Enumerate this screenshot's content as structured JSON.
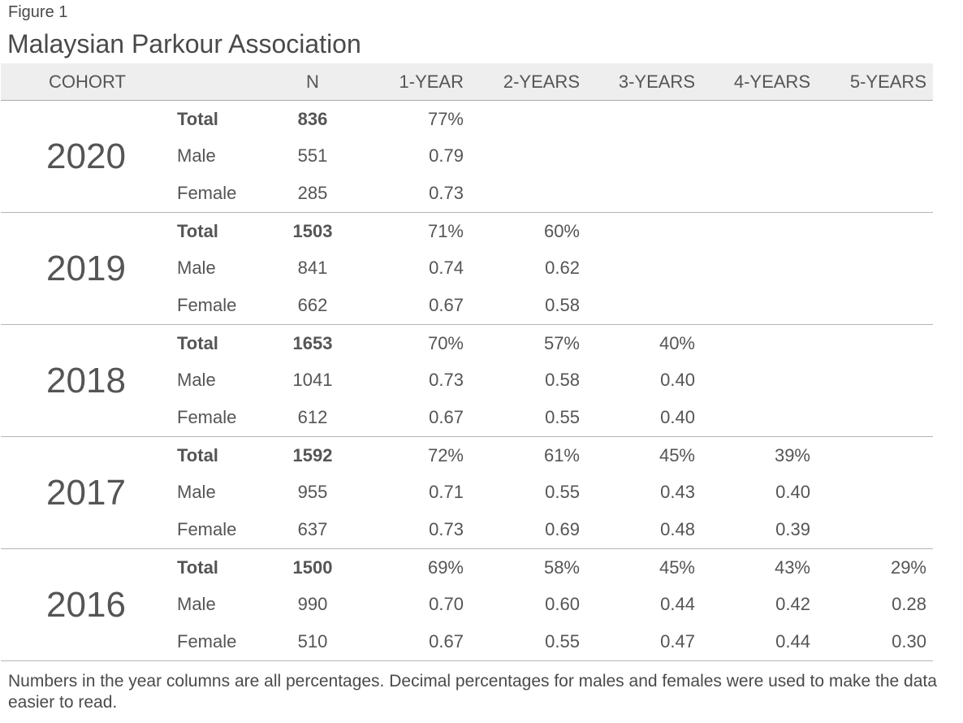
{
  "figure_label": "Figure 1",
  "chart_data": {
    "type": "table",
    "title": "Malaysian Parkour Association",
    "columns": [
      "COHORT",
      "N",
      "1-YEAR",
      "2-YEARS",
      "3-YEARS",
      "4-YEARS",
      "5-YEARS"
    ],
    "cohorts": [
      {
        "year": "2020",
        "rows": [
          {
            "label": "Total",
            "n": "836",
            "values": [
              "77%",
              "",
              "",
              "",
              ""
            ]
          },
          {
            "label": "Male",
            "n": "551",
            "values": [
              "0.79",
              "",
              "",
              "",
              ""
            ]
          },
          {
            "label": "Female",
            "n": "285",
            "values": [
              "0.73",
              "",
              "",
              "",
              ""
            ]
          }
        ]
      },
      {
        "year": "2019",
        "rows": [
          {
            "label": "Total",
            "n": "1503",
            "values": [
              "71%",
              "60%",
              "",
              "",
              ""
            ]
          },
          {
            "label": "Male",
            "n": "841",
            "values": [
              "0.74",
              "0.62",
              "",
              "",
              ""
            ]
          },
          {
            "label": "Female",
            "n": "662",
            "values": [
              "0.67",
              "0.58",
              "",
              "",
              ""
            ]
          }
        ]
      },
      {
        "year": "2018",
        "rows": [
          {
            "label": "Total",
            "n": "1653",
            "values": [
              "70%",
              "57%",
              "40%",
              "",
              ""
            ]
          },
          {
            "label": "Male",
            "n": "1041",
            "values": [
              "0.73",
              "0.58",
              "0.40",
              "",
              ""
            ]
          },
          {
            "label": "Female",
            "n": "612",
            "values": [
              "0.67",
              "0.55",
              "0.40",
              "",
              ""
            ]
          }
        ]
      },
      {
        "year": "2017",
        "rows": [
          {
            "label": "Total",
            "n": "1592",
            "values": [
              "72%",
              "61%",
              "45%",
              "39%",
              ""
            ]
          },
          {
            "label": "Male",
            "n": "955",
            "values": [
              "0.71",
              "0.55",
              "0.43",
              "0.40",
              ""
            ]
          },
          {
            "label": "Female",
            "n": "637",
            "values": [
              "0.73",
              "0.69",
              "0.48",
              "0.39",
              ""
            ]
          }
        ]
      },
      {
        "year": "2016",
        "rows": [
          {
            "label": "Total",
            "n": "1500",
            "values": [
              "69%",
              "58%",
              "45%",
              "43%",
              "29%"
            ]
          },
          {
            "label": "Male",
            "n": "990",
            "values": [
              "0.70",
              "0.60",
              "0.44",
              "0.42",
              "0.28"
            ]
          },
          {
            "label": "Female",
            "n": "510",
            "values": [
              "0.67",
              "0.55",
              "0.47",
              "0.44",
              "0.30"
            ]
          }
        ]
      }
    ]
  },
  "footnote": "Numbers in the year columns are all percentages. Decimal percentages for males and females were used to make the data easier to read."
}
